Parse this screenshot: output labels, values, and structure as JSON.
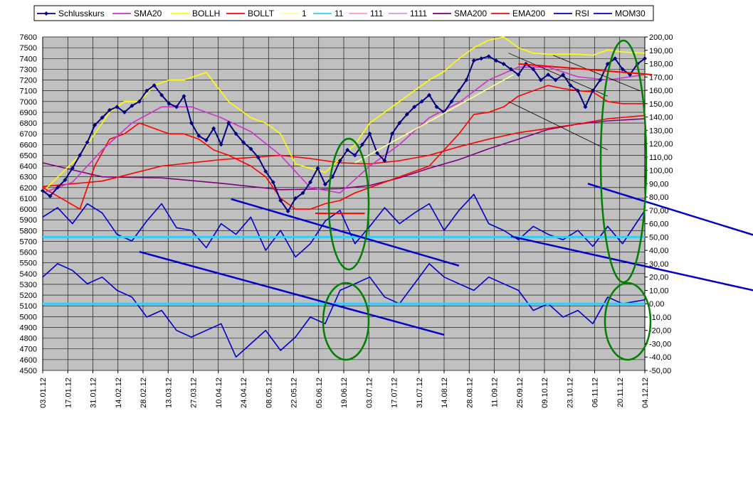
{
  "chart_data": {
    "type": "line",
    "title": "",
    "xlabel": "",
    "ylabel": "",
    "left_axis": {
      "min": 4500,
      "max": 7600,
      "step": 100
    },
    "right_axis": {
      "min": -50,
      "max": 200,
      "step": 10
    },
    "x_tick_labels": [
      "03.01.12",
      "17.01.12",
      "31.01.12",
      "14.02.12",
      "28.02.12",
      "13.03.12",
      "27.03.12",
      "10.04.12",
      "24.04.12",
      "08.05.12",
      "22.05.12",
      "05.06.12",
      "19.06.12",
      "03.07.12",
      "17.07.12",
      "31.07.12",
      "14.08.12",
      "28.08.12",
      "11.09.12",
      "25.09.12",
      "09.10.12",
      "23.10.12",
      "06.11.12",
      "20.11.12",
      "04.12.12"
    ],
    "legend": {
      "placement": "top",
      "items": [
        {
          "label": "Schlusskurs",
          "color": "#000080",
          "marker": "diamond"
        },
        {
          "label": "SMA20",
          "color": "#cc33cc"
        },
        {
          "label": "BOLLH",
          "color": "#ffff00"
        },
        {
          "label": "BOLLT",
          "color": "#ff0000"
        },
        {
          "label": "1",
          "color": "#ffff99"
        },
        {
          "label": "11",
          "color": "#33ccff"
        },
        {
          "label": "111",
          "color": "#ff99cc"
        },
        {
          "label": "1111",
          "color": "#cc99ff"
        },
        {
          "label": "SMA200",
          "color": "#800080"
        },
        {
          "label": "EMA200",
          "color": "#ff0000"
        },
        {
          "label": "RSI",
          "color": "#0000cc"
        },
        {
          "label": "MOM30",
          "color": "#0000cc"
        }
      ]
    },
    "colors": {
      "plot_background": "#c0c0c0",
      "grid": "#000000",
      "ellipse": "#008000",
      "reference_line": "#33ccff"
    },
    "series": [
      {
        "key": "close",
        "name": "Schlusskurs",
        "axis": "left",
        "color": "#000080",
        "marker": true,
        "x": [
          0,
          3,
          6,
          9,
          12,
          15,
          18,
          21,
          24,
          27,
          30,
          33,
          36,
          39,
          42,
          45,
          48,
          51,
          54,
          57,
          60,
          63,
          66,
          69,
          72,
          75,
          78,
          81,
          84,
          87,
          90,
          93,
          96,
          99,
          102,
          105,
          108,
          111,
          114,
          117,
          120,
          123,
          126,
          129,
          132,
          135,
          138,
          141,
          144,
          147,
          150,
          153,
          156,
          159,
          162,
          165,
          168,
          171,
          174,
          177,
          180,
          183,
          186,
          189,
          192,
          195,
          198,
          201,
          204,
          207,
          210,
          213,
          216,
          219,
          222,
          225,
          228,
          231,
          234,
          237,
          240,
          243
        ],
        "y": [
          6170,
          6120,
          6200,
          6270,
          6380,
          6500,
          6620,
          6780,
          6850,
          6920,
          6950,
          6900,
          6960,
          7000,
          7100,
          7150,
          7060,
          6980,
          6950,
          7050,
          6800,
          6680,
          6640,
          6750,
          6600,
          6800,
          6700,
          6620,
          6560,
          6480,
          6350,
          6250,
          6080,
          5980,
          6100,
          6150,
          6250,
          6380,
          6230,
          6300,
          6450,
          6550,
          6500,
          6600,
          6700,
          6520,
          6450,
          6700,
          6800,
          6880,
          6950,
          7000,
          7060,
          6950,
          6900,
          7000,
          7100,
          7200,
          7380,
          7400,
          7420,
          7380,
          7350,
          7300,
          7250,
          7350,
          7300,
          7200,
          7250,
          7200,
          7250,
          7150,
          7100,
          6950,
          7100,
          7200,
          7350,
          7400,
          7300,
          7250,
          7350,
          7400
        ]
      },
      {
        "key": "sma20",
        "name": "SMA20",
        "axis": "left",
        "color": "#cc33cc",
        "x": [
          0,
          12,
          24,
          36,
          48,
          60,
          72,
          84,
          96,
          108,
          120,
          132,
          144,
          156,
          168,
          180,
          192,
          204,
          216,
          228,
          243
        ],
        "y": [
          6150,
          6250,
          6550,
          6800,
          6950,
          6950,
          6850,
          6720,
          6500,
          6200,
          6150,
          6400,
          6600,
          6850,
          6990,
          7200,
          7320,
          7320,
          7230,
          7200,
          7250
        ]
      },
      {
        "key": "bollh",
        "name": "BOLLH",
        "axis": "left",
        "color": "#ffff00",
        "x": [
          0,
          15,
          27,
          33,
          39,
          45,
          51,
          57,
          66,
          75,
          84,
          90,
          96,
          102,
          108,
          114,
          120,
          126,
          132,
          144,
          150,
          156,
          162,
          168,
          174,
          180,
          186,
          192,
          198,
          204,
          210,
          216,
          222,
          228,
          234,
          243
        ],
        "y": [
          6160,
          6500,
          6900,
          7000,
          7000,
          7150,
          7200,
          7200,
          7270,
          7000,
          6850,
          6800,
          6700,
          6420,
          6380,
          6340,
          6470,
          6600,
          6800,
          7000,
          7100,
          7200,
          7280,
          7400,
          7500,
          7570,
          7600,
          7500,
          7450,
          7440,
          7440,
          7440,
          7430,
          7480,
          7460,
          7450
        ]
      },
      {
        "key": "bollt",
        "name": "BOLLT",
        "axis": "left",
        "color": "#ff0000",
        "x": [
          0,
          15,
          21,
          27,
          33,
          39,
          45,
          51,
          57,
          63,
          69,
          75,
          84,
          90,
          96,
          102,
          108,
          114,
          120,
          126,
          132,
          144,
          156,
          162,
          168,
          174,
          180,
          186,
          192,
          198,
          204,
          210,
          216,
          222,
          228,
          234,
          243
        ],
        "y": [
          6200,
          6000,
          6400,
          6650,
          6700,
          6800,
          6750,
          6700,
          6700,
          6650,
          6550,
          6500,
          6400,
          6300,
          6100,
          6000,
          6000,
          6050,
          6080,
          6150,
          6200,
          6300,
          6400,
          6550,
          6700,
          6880,
          6900,
          6950,
          7050,
          7100,
          7150,
          7120,
          7100,
          7090,
          7000,
          6980,
          6980
        ]
      },
      {
        "key": "sma200",
        "name": "SMA200",
        "axis": "left",
        "color": "#800080",
        "x": [
          0,
          24,
          48,
          72,
          96,
          120,
          132,
          144,
          156,
          168,
          180,
          192,
          204,
          216,
          228,
          243
        ],
        "y": [
          6430,
          6300,
          6290,
          6240,
          6180,
          6190,
          6220,
          6290,
          6380,
          6460,
          6560,
          6650,
          6740,
          6790,
          6820,
          6840
        ]
      },
      {
        "key": "ema200",
        "name": "EMA200",
        "axis": "left",
        "color": "#ff0000",
        "x": [
          0,
          24,
          48,
          72,
          96,
          108,
          120,
          132,
          144,
          156,
          168,
          180,
          192,
          204,
          216,
          228,
          243
        ],
        "y": [
          6210,
          6260,
          6400,
          6460,
          6500,
          6470,
          6430,
          6420,
          6450,
          6500,
          6580,
          6650,
          6710,
          6750,
          6790,
          6840,
          6870
        ]
      },
      {
        "key": "rsi",
        "name": "RSI",
        "axis": "right",
        "color": "#0000cc",
        "x": [
          0,
          6,
          12,
          18,
          24,
          30,
          36,
          42,
          48,
          54,
          60,
          66,
          72,
          78,
          84,
          90,
          96,
          102,
          108,
          114,
          120,
          126,
          132,
          138,
          144,
          150,
          156,
          162,
          168,
          174,
          180,
          186,
          192,
          198,
          204,
          210,
          216,
          222,
          228,
          234,
          243
        ],
        "y": [
          65,
          72,
          60,
          75,
          68,
          52,
          47,
          62,
          75,
          57,
          55,
          42,
          60,
          52,
          65,
          40,
          55,
          35,
          45,
          62,
          70,
          45,
          58,
          72,
          60,
          68,
          75,
          55,
          70,
          82,
          60,
          55,
          48,
          58,
          52,
          48,
          55,
          43,
          58,
          45,
          70
        ]
      },
      {
        "key": "mom30",
        "name": "MOM30",
        "axis": "right",
        "color": "#0000cc",
        "x": [
          0,
          6,
          12,
          18,
          24,
          30,
          36,
          42,
          48,
          54,
          60,
          66,
          72,
          78,
          84,
          90,
          96,
          102,
          108,
          114,
          120,
          126,
          132,
          138,
          144,
          150,
          156,
          162,
          168,
          174,
          180,
          186,
          192,
          198,
          204,
          210,
          216,
          222,
          228,
          234,
          243
        ],
        "y": [
          20,
          30,
          25,
          15,
          20,
          10,
          5,
          -10,
          -5,
          -20,
          -25,
          -20,
          -15,
          -40,
          -30,
          -20,
          -35,
          -25,
          -10,
          -15,
          10,
          15,
          20,
          5,
          0,
          15,
          30,
          20,
          15,
          10,
          20,
          15,
          10,
          -5,
          0,
          -10,
          -5,
          -15,
          5,
          0,
          3
        ]
      }
    ]
  }
}
